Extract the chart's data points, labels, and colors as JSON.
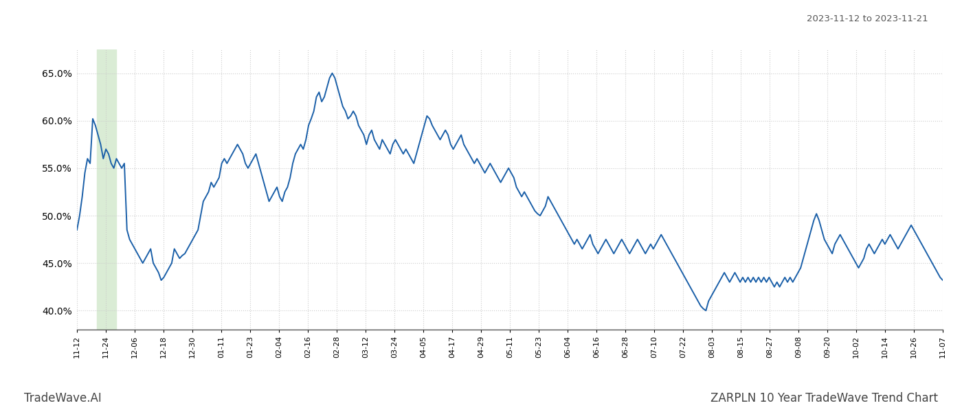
{
  "title_date_range": "2023-11-12 to 2023-11-21",
  "footer_left": "TradeWave.AI",
  "footer_right": "ZARPLN 10 Year TradeWave Trend Chart",
  "line_color": "#1a5fa8",
  "line_width": 1.4,
  "highlight_color": "#daecd5",
  "ylim": [
    38.0,
    67.5
  ],
  "yticks": [
    40.0,
    45.0,
    50.0,
    55.0,
    60.0,
    65.0
  ],
  "background_color": "#ffffff",
  "grid_color": "#cccccc",
  "x_labels": [
    "11-12",
    "11-24",
    "12-06",
    "12-18",
    "12-30",
    "01-11",
    "01-23",
    "02-04",
    "02-16",
    "02-28",
    "03-12",
    "03-24",
    "04-05",
    "04-17",
    "04-29",
    "05-11",
    "05-23",
    "06-04",
    "06-16",
    "06-28",
    "07-10",
    "07-22",
    "08-03",
    "08-15",
    "08-27",
    "09-08",
    "09-20",
    "10-02",
    "10-14",
    "10-26",
    "11-07"
  ],
  "y_values": [
    48.5,
    50.0,
    52.0,
    54.5,
    56.0,
    55.5,
    60.2,
    59.5,
    58.5,
    57.5,
    56.0,
    57.0,
    56.5,
    55.5,
    55.0,
    56.0,
    55.5,
    55.0,
    55.5,
    48.5,
    47.5,
    47.0,
    46.5,
    46.0,
    45.5,
    45.0,
    45.5,
    46.0,
    46.5,
    45.0,
    44.5,
    44.0,
    43.2,
    43.5,
    44.0,
    44.5,
    45.0,
    46.5,
    46.0,
    45.5,
    45.8,
    46.0,
    46.5,
    47.0,
    47.5,
    48.0,
    48.5,
    50.0,
    51.5,
    52.0,
    52.5,
    53.5,
    53.0,
    53.5,
    54.0,
    55.5,
    56.0,
    55.5,
    56.0,
    56.5,
    57.0,
    57.5,
    57.0,
    56.5,
    55.5,
    55.0,
    55.5,
    56.0,
    56.5,
    55.5,
    54.5,
    53.5,
    52.5,
    51.5,
    52.0,
    52.5,
    53.0,
    52.0,
    51.5,
    52.5,
    53.0,
    54.0,
    55.5,
    56.5,
    57.0,
    57.5,
    57.0,
    58.0,
    59.5,
    60.2,
    61.0,
    62.5,
    63.0,
    62.0,
    62.5,
    63.5,
    64.5,
    65.0,
    64.5,
    63.5,
    62.5,
    61.5,
    61.0,
    60.2,
    60.5,
    61.0,
    60.5,
    59.5,
    59.0,
    58.5,
    57.5,
    58.5,
    59.0,
    58.0,
    57.5,
    57.0,
    58.0,
    57.5,
    57.0,
    56.5,
    57.5,
    58.0,
    57.5,
    57.0,
    56.5,
    57.0,
    56.5,
    56.0,
    55.5,
    56.5,
    57.5,
    58.5,
    59.5,
    60.5,
    60.2,
    59.5,
    59.0,
    58.5,
    58.0,
    58.5,
    59.0,
    58.5,
    57.5,
    57.0,
    57.5,
    58.0,
    58.5,
    57.5,
    57.0,
    56.5,
    56.0,
    55.5,
    56.0,
    55.5,
    55.0,
    54.5,
    55.0,
    55.5,
    55.0,
    54.5,
    54.0,
    53.5,
    54.0,
    54.5,
    55.0,
    54.5,
    54.0,
    53.0,
    52.5,
    52.0,
    52.5,
    52.0,
    51.5,
    51.0,
    50.5,
    50.2,
    50.0,
    50.5,
    51.0,
    52.0,
    51.5,
    51.0,
    50.5,
    50.0,
    49.5,
    49.0,
    48.5,
    48.0,
    47.5,
    47.0,
    47.5,
    47.0,
    46.5,
    47.0,
    47.5,
    48.0,
    47.0,
    46.5,
    46.0,
    46.5,
    47.0,
    47.5,
    47.0,
    46.5,
    46.0,
    46.5,
    47.0,
    47.5,
    47.0,
    46.5,
    46.0,
    46.5,
    47.0,
    47.5,
    47.0,
    46.5,
    46.0,
    46.5,
    47.0,
    46.5,
    47.0,
    47.5,
    48.0,
    47.5,
    47.0,
    46.5,
    46.0,
    45.5,
    45.0,
    44.5,
    44.0,
    43.5,
    43.0,
    42.5,
    42.0,
    41.5,
    41.0,
    40.5,
    40.2,
    40.0,
    41.0,
    41.5,
    42.0,
    42.5,
    43.0,
    43.5,
    44.0,
    43.5,
    43.0,
    43.5,
    44.0,
    43.5,
    43.0,
    43.5,
    43.0,
    43.5,
    43.0,
    43.5,
    43.0,
    43.5,
    43.0,
    43.5,
    43.0,
    43.5,
    43.0,
    42.5,
    43.0,
    42.5,
    43.0,
    43.5,
    43.0,
    43.5,
    43.0,
    43.5,
    44.0,
    44.5,
    45.5,
    46.5,
    47.5,
    48.5,
    49.5,
    50.2,
    49.5,
    48.5,
    47.5,
    47.0,
    46.5,
    46.0,
    47.0,
    47.5,
    48.0,
    47.5,
    47.0,
    46.5,
    46.0,
    45.5,
    45.0,
    44.5,
    45.0,
    45.5,
    46.5,
    47.0,
    46.5,
    46.0,
    46.5,
    47.0,
    47.5,
    47.0,
    47.5,
    48.0,
    47.5,
    47.0,
    46.5,
    47.0,
    47.5,
    48.0,
    48.5,
    49.0,
    48.5,
    48.0,
    47.5,
    47.0,
    46.5,
    46.0,
    45.5,
    45.0,
    44.5,
    44.0,
    43.5,
    43.2
  ]
}
